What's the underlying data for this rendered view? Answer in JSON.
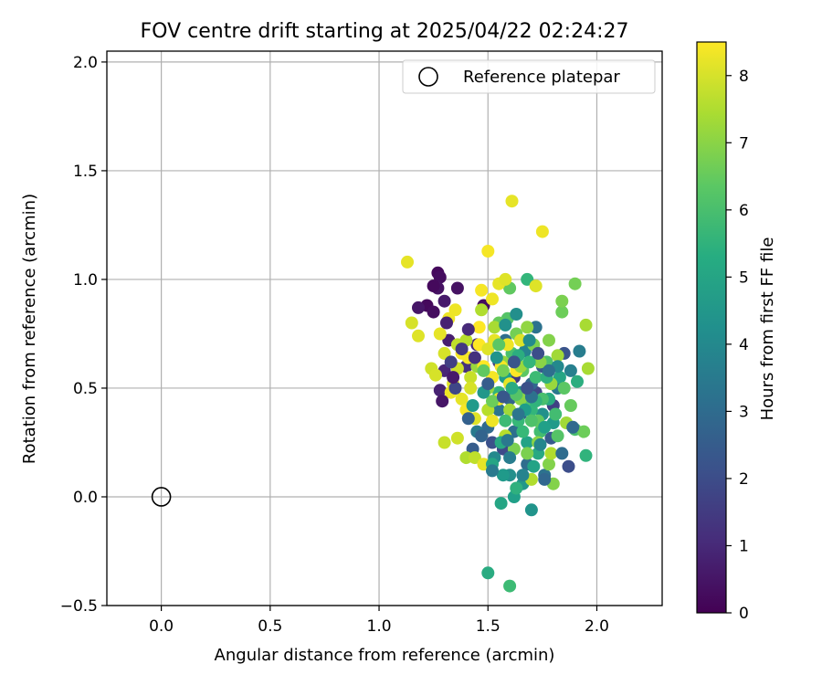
{
  "chart_data": {
    "type": "scatter",
    "title": "FOV centre drift starting at 2025/04/22 02:24:27",
    "xlabel": "Angular distance from reference (arcmin)",
    "ylabel": "Rotation from reference (arcmin)",
    "xlim": [
      -0.25,
      2.3
    ],
    "ylim": [
      -0.5,
      2.05
    ],
    "xticks": [
      0.0,
      0.5,
      1.0,
      1.5,
      2.0
    ],
    "xtick_labels": [
      "0.0",
      "0.5",
      "1.0",
      "1.5",
      "2.0"
    ],
    "yticks": [
      -0.5,
      0.0,
      0.5,
      1.0,
      1.5,
      2.0
    ],
    "ytick_labels": [
      "−0.5",
      "0.0",
      "0.5",
      "1.0",
      "1.5",
      "2.0"
    ],
    "grid": true,
    "legend": {
      "placement": "top-right",
      "entries": [
        {
          "label": "Reference platepar",
          "marker": "open-circle"
        }
      ]
    },
    "reference_point": {
      "x": 0.0,
      "y": 0.0
    },
    "colorbar": {
      "label": "Hours from first FF file",
      "range": [
        0,
        8.5
      ],
      "ticks": [
        0,
        1,
        2,
        3,
        4,
        5,
        6,
        7,
        8
      ],
      "tick_labels": [
        "0",
        "1",
        "2",
        "3",
        "4",
        "5",
        "6",
        "7",
        "8"
      ],
      "colormap": "viridis"
    },
    "points": [
      [
        1.27,
        1.03,
        0.2
      ],
      [
        1.28,
        1.01,
        0.3
      ],
      [
        1.27,
        0.96,
        0.4
      ],
      [
        1.22,
        0.88,
        0.2
      ],
      [
        1.25,
        0.85,
        0.3
      ],
      [
        1.18,
        0.87,
        0.5
      ],
      [
        1.3,
        0.9,
        0.6
      ],
      [
        1.48,
        0.88,
        0.3
      ],
      [
        1.32,
        0.72,
        0.7
      ],
      [
        1.3,
        0.58,
        0.9
      ],
      [
        1.28,
        0.49,
        0.8
      ],
      [
        1.4,
        0.6,
        1.2
      ],
      [
        1.45,
        0.7,
        1.0
      ],
      [
        1.55,
        0.62,
        1.5
      ],
      [
        1.62,
        0.55,
        1.4
      ],
      [
        1.72,
        0.48,
        1.8
      ],
      [
        1.8,
        0.42,
        1.6
      ],
      [
        1.87,
        0.14,
        2.0
      ],
      [
        1.85,
        0.66,
        2.2
      ],
      [
        1.79,
        0.27,
        2.4
      ],
      [
        1.57,
        0.22,
        1.9
      ],
      [
        1.43,
        0.22,
        2.5
      ],
      [
        1.52,
        0.25,
        2.1
      ],
      [
        1.65,
        0.38,
        2.6
      ],
      [
        1.7,
        0.52,
        2.8
      ],
      [
        1.75,
        0.6,
        2.3
      ],
      [
        1.6,
        0.45,
        2.7
      ],
      [
        1.5,
        0.32,
        2.9
      ],
      [
        1.68,
        0.15,
        3.0
      ],
      [
        1.76,
        0.1,
        3.2
      ],
      [
        1.62,
        0.3,
        3.1
      ],
      [
        1.55,
        0.4,
        3.3
      ],
      [
        1.82,
        0.5,
        3.4
      ],
      [
        1.92,
        0.67,
        3.6
      ],
      [
        1.45,
        0.3,
        3.5
      ],
      [
        1.67,
        0.67,
        3.8
      ],
      [
        1.72,
        0.78,
        3.2
      ],
      [
        1.58,
        0.72,
        3.0
      ],
      [
        1.88,
        0.58,
        3.7
      ],
      [
        1.53,
        0.18,
        4.0
      ],
      [
        1.6,
        0.1,
        4.2
      ],
      [
        1.66,
        0.06,
        4.5
      ],
      [
        1.7,
        -0.06,
        4.4
      ],
      [
        1.57,
        0.1,
        4.6
      ],
      [
        1.62,
        0.0,
        4.8
      ],
      [
        1.56,
        -0.03,
        5.0
      ],
      [
        1.75,
        0.38,
        4.3
      ],
      [
        1.8,
        0.34,
        4.6
      ],
      [
        1.68,
        0.25,
        4.9
      ],
      [
        1.73,
        0.2,
        5.1
      ],
      [
        1.65,
        0.48,
        4.1
      ],
      [
        1.58,
        0.55,
        4.7
      ],
      [
        1.78,
        0.45,
        5.2
      ],
      [
        1.83,
        0.55,
        5.0
      ],
      [
        1.91,
        0.53,
        5.3
      ],
      [
        1.63,
        0.04,
        5.4
      ],
      [
        1.95,
        0.19,
        5.5
      ],
      [
        1.68,
        1.0,
        5.6
      ],
      [
        1.5,
        -0.35,
        5.2
      ],
      [
        1.6,
        -0.41,
        5.8
      ],
      [
        1.7,
        0.4,
        5.6
      ],
      [
        1.74,
        0.3,
        5.9
      ],
      [
        1.64,
        0.35,
        5.7
      ],
      [
        1.55,
        0.48,
        5.5
      ],
      [
        1.61,
        0.66,
        6.0
      ],
      [
        1.67,
        0.44,
        6.1
      ],
      [
        1.72,
        0.55,
        5.8
      ],
      [
        1.82,
        0.28,
        6.2
      ],
      [
        1.9,
        0.31,
        6.0
      ],
      [
        1.85,
        0.5,
        6.3
      ],
      [
        1.77,
        0.62,
        6.1
      ],
      [
        1.59,
        0.82,
        6.2
      ],
      [
        1.66,
        0.58,
        6.3
      ],
      [
        1.6,
        0.96,
        6.4
      ],
      [
        1.73,
        0.35,
        6.4
      ],
      [
        1.88,
        0.42,
        6.5
      ],
      [
        1.94,
        0.3,
        6.6
      ],
      [
        1.84,
        0.85,
        6.6
      ],
      [
        1.9,
        0.98,
        6.7
      ],
      [
        1.71,
        0.7,
        6.8
      ],
      [
        1.63,
        0.75,
        6.7
      ],
      [
        1.55,
        0.8,
        6.5
      ],
      [
        1.68,
        0.2,
        6.8
      ],
      [
        1.78,
        0.15,
        6.9
      ],
      [
        1.8,
        0.06,
        6.9
      ],
      [
        1.84,
        0.9,
        6.8
      ],
      [
        1.65,
        0.45,
        7.0
      ],
      [
        1.73,
        0.25,
        7.0
      ],
      [
        1.57,
        0.62,
        7.1
      ],
      [
        1.5,
        0.5,
        7.1
      ],
      [
        1.45,
        0.6,
        7.2
      ],
      [
        1.79,
        0.52,
        7.2
      ],
      [
        1.86,
        0.34,
        7.3
      ],
      [
        1.82,
        0.65,
        7.3
      ],
      [
        1.95,
        0.79,
        7.4
      ],
      [
        1.96,
        0.59,
        7.4
      ],
      [
        1.7,
        0.08,
        7.5
      ],
      [
        1.79,
        0.2,
        7.5
      ],
      [
        1.58,
        0.28,
        7.6
      ],
      [
        1.5,
        0.4,
        7.6
      ],
      [
        1.4,
        0.18,
        7.5
      ],
      [
        1.44,
        0.18,
        7.7
      ],
      [
        1.42,
        0.55,
        7.8
      ],
      [
        1.36,
        0.7,
        7.7
      ],
      [
        1.3,
        0.25,
        7.8
      ],
      [
        1.36,
        0.27,
        7.9
      ],
      [
        1.24,
        0.59,
        7.9
      ],
      [
        1.26,
        0.56,
        8.0
      ],
      [
        1.15,
        0.8,
        8.0
      ],
      [
        1.18,
        0.74,
        8.1
      ],
      [
        1.13,
        1.08,
        8.2
      ],
      [
        1.28,
        0.75,
        8.2
      ],
      [
        1.32,
        0.82,
        8.3
      ],
      [
        1.35,
        0.86,
        8.3
      ],
      [
        1.38,
        0.66,
        8.4
      ],
      [
        1.41,
        0.64,
        8.4
      ],
      [
        1.46,
        0.78,
        8.5
      ],
      [
        1.5,
        1.13,
        8.4
      ],
      [
        1.52,
        0.91,
        8.3
      ],
      [
        1.55,
        0.98,
        8.2
      ],
      [
        1.58,
        1.0,
        8.1
      ],
      [
        1.61,
        1.36,
        8.2
      ],
      [
        1.75,
        1.22,
        8.3
      ],
      [
        1.72,
        0.97,
        8.1
      ],
      [
        1.48,
        0.6,
        8.5
      ],
      [
        1.52,
        0.55,
        8.4
      ],
      [
        1.55,
        0.45,
        8.3
      ],
      [
        1.6,
        0.52,
        8.2
      ],
      [
        1.65,
        0.72,
        8.1
      ],
      [
        1.42,
        0.5,
        8.0
      ],
      [
        1.38,
        0.45,
        8.2
      ],
      [
        1.34,
        0.52,
        8.1
      ],
      [
        1.3,
        0.66,
        8.0
      ],
      [
        1.48,
        0.15,
        8.2
      ],
      [
        1.52,
        0.35,
        8.3
      ],
      [
        1.56,
        0.6,
        8.4
      ],
      [
        1.46,
        0.7,
        8.5
      ],
      [
        1.4,
        0.4,
        8.4
      ],
      [
        1.44,
        0.36,
        8.1
      ],
      [
        1.33,
        0.48,
        8.3
      ],
      [
        1.5,
        0.68,
        8.1
      ],
      [
        1.53,
        0.72,
        8.2
      ],
      [
        1.59,
        0.7,
        8.3
      ],
      [
        1.63,
        0.58,
        8.5
      ],
      [
        1.47,
        0.95,
        8.4
      ],
      [
        1.36,
        0.59,
        7.9
      ],
      [
        1.4,
        0.72,
        7.6
      ],
      [
        1.47,
        0.86,
        7.5
      ],
      [
        1.53,
        0.78,
        7.4
      ],
      [
        1.6,
        0.4,
        7.3
      ],
      [
        1.65,
        0.6,
        7.2
      ],
      [
        1.68,
        0.78,
        7.1
      ],
      [
        1.74,
        0.62,
        7.0
      ],
      [
        1.78,
        0.72,
        6.9
      ],
      [
        1.62,
        0.22,
        6.8
      ],
      [
        1.57,
        0.58,
        6.7
      ],
      [
        1.52,
        0.44,
        6.6
      ],
      [
        1.48,
        0.58,
        6.4
      ],
      [
        1.55,
        0.7,
        6.3
      ],
      [
        1.63,
        0.47,
        6.2
      ],
      [
        1.7,
        0.35,
        6.1
      ],
      [
        1.75,
        0.45,
        6.0
      ],
      [
        1.81,
        0.38,
        5.9
      ],
      [
        1.58,
        0.35,
        5.8
      ],
      [
        1.66,
        0.3,
        5.7
      ],
      [
        1.69,
        0.62,
        5.6
      ],
      [
        1.72,
        0.44,
        5.5
      ],
      [
        1.77,
        0.55,
        5.4
      ],
      [
        1.64,
        0.65,
        5.3
      ],
      [
        1.61,
        0.5,
        5.2
      ],
      [
        1.56,
        0.25,
        5.1
      ],
      [
        1.52,
        0.15,
        5.0
      ],
      [
        1.71,
        0.14,
        4.9
      ],
      [
        1.76,
        0.32,
        4.8
      ],
      [
        1.67,
        0.4,
        4.7
      ],
      [
        1.43,
        0.42,
        4.6
      ],
      [
        1.48,
        0.48,
        4.5
      ],
      [
        1.54,
        0.64,
        4.4
      ],
      [
        1.58,
        0.79,
        4.3
      ],
      [
        1.63,
        0.84,
        4.2
      ],
      [
        1.69,
        0.72,
        4.1
      ],
      [
        1.82,
        0.6,
        4.0
      ],
      [
        1.74,
        0.24,
        3.9
      ],
      [
        1.66,
        0.1,
        3.8
      ],
      [
        1.6,
        0.18,
        3.6
      ],
      [
        1.52,
        0.12,
        3.5
      ],
      [
        1.59,
        0.26,
        3.4
      ],
      [
        1.64,
        0.38,
        3.3
      ],
      [
        1.7,
        0.46,
        3.2
      ],
      [
        1.78,
        0.58,
        3.1
      ],
      [
        1.84,
        0.2,
        3.0
      ],
      [
        1.89,
        0.32,
        2.9
      ],
      [
        1.76,
        0.08,
        2.8
      ],
      [
        1.47,
        0.28,
        2.7
      ],
      [
        1.41,
        0.36,
        2.6
      ],
      [
        1.5,
        0.52,
        2.5
      ],
      [
        1.57,
        0.46,
        2.3
      ],
      [
        1.62,
        0.62,
        2.2
      ],
      [
        1.68,
        0.5,
        2.1
      ],
      [
        1.73,
        0.66,
        2.0
      ],
      [
        1.35,
        0.5,
        1.8
      ],
      [
        1.33,
        0.62,
        1.6
      ],
      [
        1.38,
        0.68,
        1.4
      ],
      [
        1.44,
        0.64,
        1.2
      ],
      [
        1.41,
        0.77,
        1.0
      ],
      [
        1.31,
        0.8,
        0.8
      ],
      [
        1.34,
        0.55,
        0.6
      ],
      [
        1.29,
        0.44,
        0.5
      ],
      [
        1.36,
        0.96,
        0.4
      ],
      [
        1.25,
        0.97,
        0.2
      ]
    ]
  }
}
